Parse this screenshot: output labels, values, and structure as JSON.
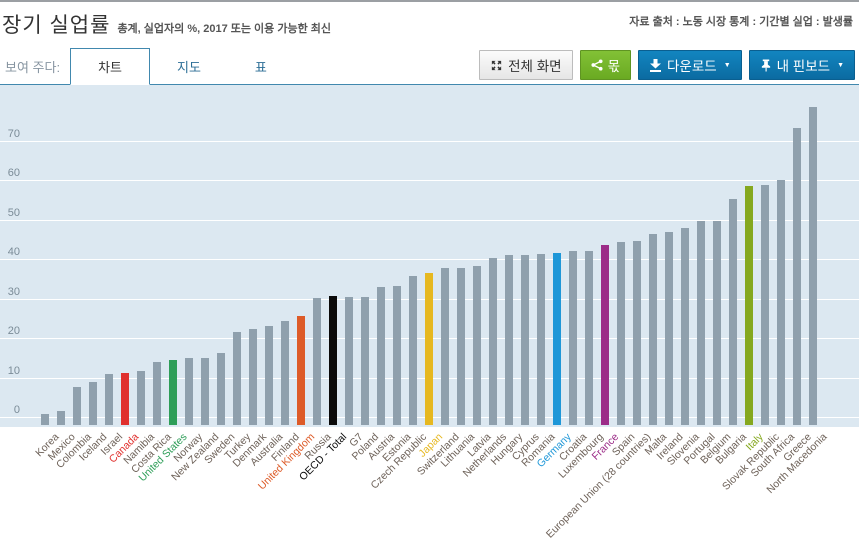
{
  "header": {
    "title": "장기 실업률",
    "subtitle": "총계, 실업자의 %, 2017 또는 이용 가능한 최신",
    "source": "자료 출처 : 노동 시장 통계 : 기간별 실업 : 발생률"
  },
  "toolbar": {
    "show_label": "보여 주다:",
    "tabs": [
      {
        "label": "차트",
        "active": true
      },
      {
        "label": "지도",
        "active": false
      },
      {
        "label": "표",
        "active": false
      }
    ],
    "buttons": {
      "fullscreen": "전체 화면",
      "share": "몫",
      "download": "다운로드",
      "pinboard": "내 핀보드"
    }
  },
  "colors": {
    "plot_background": "#dce8f1",
    "gridline": "#ffffff",
    "default_bar": "#8fa0ad",
    "default_label": "#6e6259",
    "tab_line": "#4188ae",
    "button_blue": "#0d76af",
    "button_green": "#74b42a"
  },
  "chart_data": {
    "type": "bar",
    "title": "장기 실업률",
    "subtitle": "총계, 실업자의 %, 2017 또는 이용 가능한 최신",
    "xlabel": "",
    "ylabel": "실업자의 %",
    "ylim": [
      0,
      80
    ],
    "yticks": [
      0,
      10,
      20,
      30,
      40,
      50,
      60,
      70
    ],
    "grid": true,
    "legend": false,
    "categories": [
      "Korea",
      "Mexico",
      "Colombia",
      "Iceland",
      "Israel",
      "Canada",
      "Namibia",
      "Costa Rica",
      "United States",
      "Norway",
      "New Zealand",
      "Sweden",
      "Turkey",
      "Denmark",
      "Australia",
      "Finland",
      "United Kingdom",
      "Russia",
      "OECD - Total",
      "G7",
      "Poland",
      "Austria",
      "Estonia",
      "Czech Republic",
      "Japan",
      "Switzerland",
      "Lithuania",
      "Latvia",
      "Netherlands",
      "Hungary",
      "Cyprus",
      "Romania",
      "Germany",
      "Croatia",
      "Luxembourg",
      "France",
      "Spain",
      "European Union (28 countries)",
      "Malta",
      "Ireland",
      "Slovenia",
      "Portugal",
      "Belgium",
      "Bulgaria",
      "Italy",
      "Slovak Republic",
      "South Africa",
      "Greece",
      "North Macedonia"
    ],
    "values": [
      1.1,
      1.8,
      7.8,
      9.0,
      11.2,
      11.4,
      12.0,
      14.2,
      14.7,
      15.1,
      15.2,
      16.5,
      21.7,
      22.6,
      23.3,
      24.6,
      25.8,
      30.3,
      30.8,
      30.6,
      30.7,
      33.2,
      33.3,
      35.9,
      36.6,
      37.9,
      38.0,
      38.4,
      40.5,
      41.2,
      41.3,
      41.4,
      41.9,
      42.3,
      42.4,
      43.9,
      44.5,
      44.8,
      46.6,
      47.0,
      48.1,
      49.9,
      50.0,
      55.5,
      58.8,
      59.0,
      60.3,
      73.3,
      78.8
    ],
    "default_bar_color": "#8fa0ad",
    "highlight_colors": {
      "Canada": "#e0302e",
      "United States": "#2e9e58",
      "United Kingdom": "#dd5b28",
      "OECD - Total": "#0a0a0a",
      "Japan": "#e6b820",
      "Germany": "#1e97d8",
      "France": "#9c2c88",
      "Italy": "#85a81f"
    }
  }
}
